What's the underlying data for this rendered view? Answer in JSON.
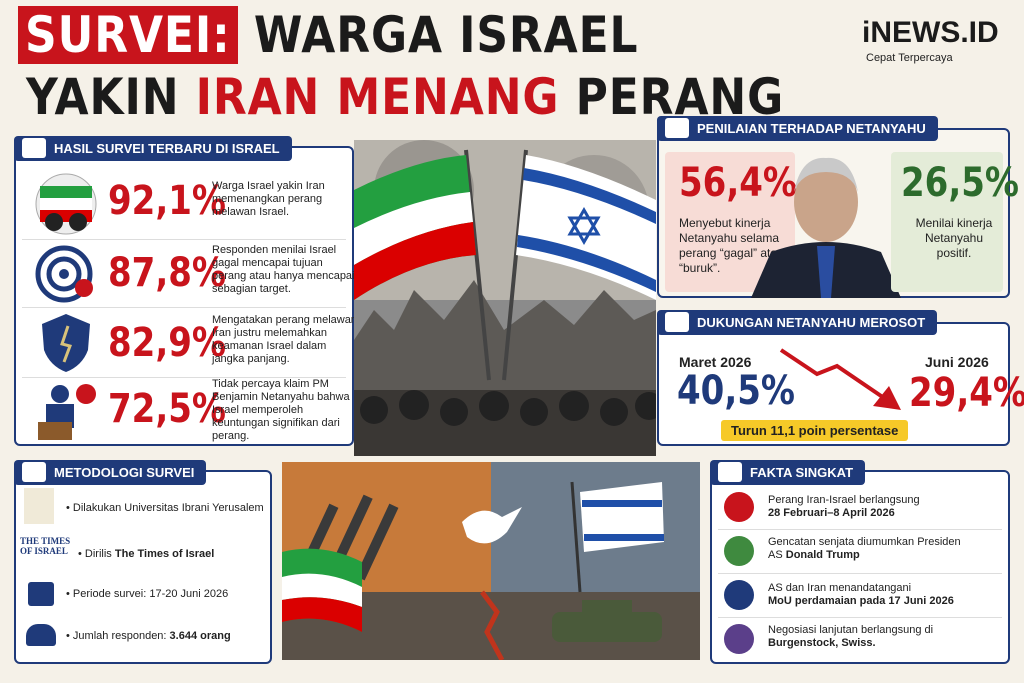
{
  "header": {
    "title_parts": [
      "SURVEI:",
      "WARGA ISRAEL",
      "YAKIN",
      "IRAN MENANG",
      "PERANG"
    ],
    "logo": "iNEWS.ID",
    "tagline": "Cepat Terpercaya"
  },
  "survey": {
    "title": "HASIL SURVEI TERBARU DI ISRAEL",
    "items": [
      {
        "value": "92,1%",
        "text": "Warga Israel yakin Iran memenangkan perang melawan Israel."
      },
      {
        "value": "87,8%",
        "text": "Responden menilai Israel gagal mencapai tujuan perang atau hanya mencapai sebagian target."
      },
      {
        "value": "82,9%",
        "text": "Mengatakan perang melawan Iran justru melemahkan keamanan Israel dalam jangka panjang."
      },
      {
        "value": "72,5%",
        "text": "Tidak percaya klaim PM Benjamin Netanyahu bahwa Israel memperoleh keuntungan signifikan dari perang."
      }
    ]
  },
  "rating": {
    "title": "PENILAIAN TERHADAP NETANYAHU",
    "negative": {
      "value": "56,4%",
      "text": "Menyebut kinerja Netanyahu selama perang “gagal” atau “buruk”."
    },
    "positive": {
      "value": "26,5%",
      "text": "Menilai kinerja Netanyahu positif."
    }
  },
  "support": {
    "title": "DUKUNGAN NETANYAHU MEROSOT",
    "before": {
      "label": "Maret 2026",
      "value": "40,5%"
    },
    "after": {
      "label": "Juni 2026",
      "value": "29,4%"
    },
    "change": "Turun 11,1 poin persentase"
  },
  "method": {
    "title": "METODOLOGI SURVEI",
    "times_logo": "THE TIMES OF ISRAEL",
    "items": [
      {
        "text": "Dilakukan Universitas Ibrani Yerusalem"
      },
      {
        "text": "Dirilis",
        "bold": "The Times of Israel"
      },
      {
        "text": "Periode survei: 17-20 Juni 2026"
      },
      {
        "text": "Jumlah responden:",
        "bold": "3.644 orang"
      }
    ]
  },
  "facts": {
    "title": "FAKTA SINGKAT",
    "items": [
      {
        "text": "Perang Iran-Israel berlangsung",
        "bold": "28 Februari–8 April 2026"
      },
      {
        "text": "Gencatan senjata diumumkan Presiden AS",
        "bold": "Donald Trump"
      },
      {
        "text": "AS dan Iran menandatangani",
        "bold": "MoU perdamaian pada 17 Juni 2026"
      },
      {
        "text": "Negosiasi lanjutan berlangsung di",
        "bold": "Burgenstock, Swiss."
      }
    ]
  }
}
